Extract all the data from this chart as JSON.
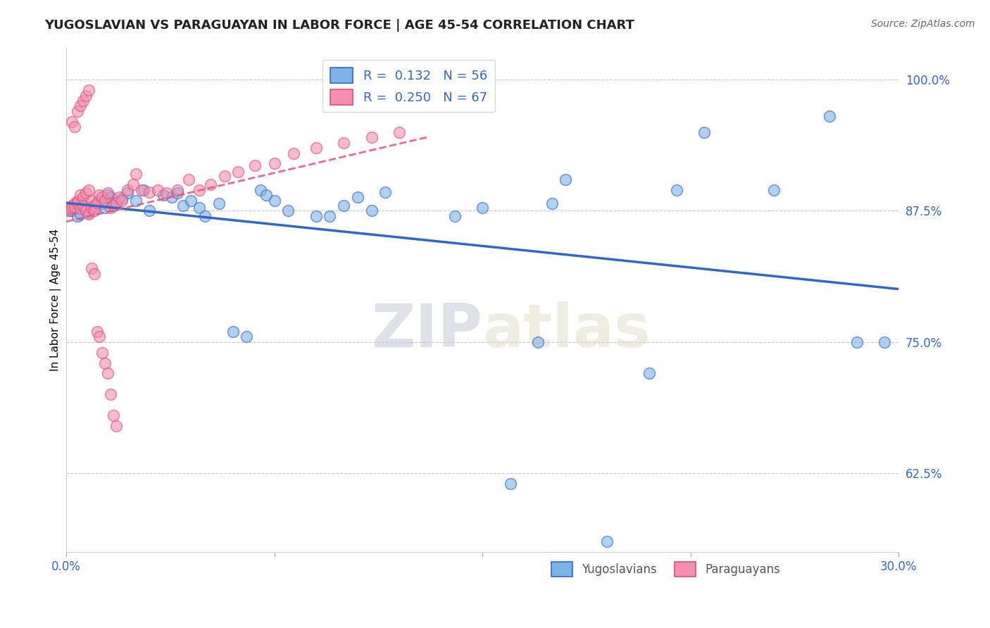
{
  "title": "YUGOSLAVIAN VS PARAGUAYAN IN LABOR FORCE | AGE 45-54 CORRELATION CHART",
  "source": "Source: ZipAtlas.com",
  "ylabel": "In Labor Force | Age 45-54",
  "xlim": [
    0.0,
    0.3
  ],
  "ylim": [
    0.55,
    1.03
  ],
  "ytick_labels_right": [
    "62.5%",
    "75.0%",
    "87.5%",
    "100.0%"
  ],
  "yticks_right": [
    0.625,
    0.75,
    0.875,
    1.0
  ],
  "blue_color": "#7EB3E8",
  "pink_color": "#F48FB1",
  "blue_edge_color": "#3366CC",
  "pink_edge_color": "#E05070",
  "blue_line_color": "#3366CC",
  "pink_line_color": "#E85080",
  "legend_R_blue": "R =  0.132",
  "legend_N_blue": "N = 56",
  "legend_R_pink": "R =  0.250",
  "legend_N_pink": "N = 67",
  "blue_label": "Yugoslavians",
  "pink_label": "Paraguayans",
  "watermark_zip": "ZIP",
  "watermark_atlas": "atlas",
  "blue_scatter_x": [
    0.001,
    0.002,
    0.003,
    0.004,
    0.005,
    0.006,
    0.007,
    0.008,
    0.009,
    0.01,
    0.012,
    0.013,
    0.014,
    0.015,
    0.016,
    0.017,
    0.018,
    0.02,
    0.022,
    0.025,
    0.028,
    0.03,
    0.035,
    0.038,
    0.04,
    0.042,
    0.045,
    0.048,
    0.05,
    0.055,
    0.06,
    0.065,
    0.07,
    0.072,
    0.075,
    0.08,
    0.09,
    0.095,
    0.1,
    0.105,
    0.11,
    0.115,
    0.14,
    0.15,
    0.16,
    0.17,
    0.175,
    0.18,
    0.195,
    0.21,
    0.22,
    0.23,
    0.255,
    0.275,
    0.285,
    0.295
  ],
  "blue_scatter_y": [
    0.875,
    0.875,
    0.878,
    0.87,
    0.872,
    0.88,
    0.876,
    0.873,
    0.879,
    0.877,
    0.885,
    0.882,
    0.878,
    0.89,
    0.888,
    0.88,
    0.883,
    0.887,
    0.892,
    0.885,
    0.895,
    0.875,
    0.89,
    0.888,
    0.892,
    0.88,
    0.885,
    0.878,
    0.87,
    0.882,
    0.76,
    0.755,
    0.895,
    0.89,
    0.885,
    0.875,
    0.87,
    0.87,
    0.88,
    0.888,
    0.875,
    0.893,
    0.87,
    0.878,
    0.615,
    0.75,
    0.882,
    0.905,
    0.56,
    0.72,
    0.895,
    0.95,
    0.895,
    0.965,
    0.75,
    0.75
  ],
  "pink_scatter_x": [
    0.001,
    0.001,
    0.002,
    0.002,
    0.003,
    0.003,
    0.004,
    0.004,
    0.005,
    0.005,
    0.006,
    0.006,
    0.007,
    0.007,
    0.008,
    0.008,
    0.009,
    0.009,
    0.01,
    0.01,
    0.011,
    0.012,
    0.013,
    0.014,
    0.015,
    0.016,
    0.017,
    0.018,
    0.019,
    0.02,
    0.022,
    0.024,
    0.025,
    0.027,
    0.03,
    0.033,
    0.036,
    0.04,
    0.044,
    0.048,
    0.052,
    0.057,
    0.062,
    0.068,
    0.075,
    0.082,
    0.09,
    0.1,
    0.11,
    0.12,
    0.002,
    0.003,
    0.004,
    0.005,
    0.006,
    0.007,
    0.008,
    0.009,
    0.01,
    0.011,
    0.012,
    0.013,
    0.014,
    0.015,
    0.016,
    0.017,
    0.018
  ],
  "pink_scatter_y": [
    0.875,
    0.877,
    0.88,
    0.878,
    0.882,
    0.879,
    0.885,
    0.883,
    0.877,
    0.89,
    0.888,
    0.88,
    0.875,
    0.892,
    0.872,
    0.895,
    0.885,
    0.878,
    0.88,
    0.875,
    0.883,
    0.89,
    0.888,
    0.885,
    0.892,
    0.878,
    0.88,
    0.883,
    0.888,
    0.885,
    0.895,
    0.9,
    0.91,
    0.895,
    0.893,
    0.895,
    0.892,
    0.895,
    0.905,
    0.895,
    0.9,
    0.908,
    0.912,
    0.918,
    0.92,
    0.93,
    0.935,
    0.94,
    0.945,
    0.95,
    0.96,
    0.955,
    0.97,
    0.975,
    0.98,
    0.985,
    0.99,
    0.82,
    0.815,
    0.76,
    0.755,
    0.74,
    0.73,
    0.72,
    0.7,
    0.68,
    0.67
  ]
}
